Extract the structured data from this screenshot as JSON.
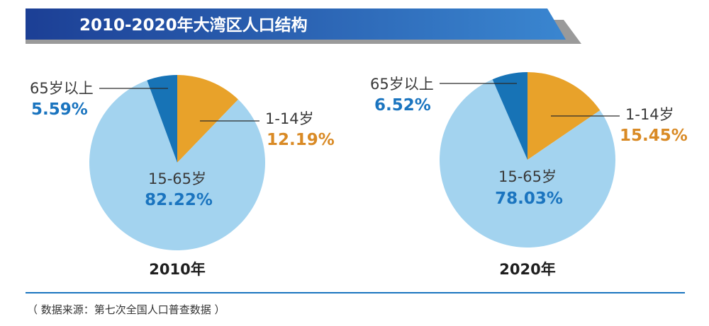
{
  "colors": {
    "banner_dark": "#1c3f95",
    "banner_light": "#3a86d0",
    "banner_shadow": "#9a9a9a",
    "aged_0_14": "#e8a22a",
    "aged_15_65": "#a3d3ef",
    "aged_65_plus": "#1773b6",
    "label_orange": "#d98a25",
    "label_blue": "#1a74bf",
    "divider": "#1a74bf"
  },
  "chart_data": {
    "type": "pie",
    "title": "2010-2020年大湾区人口结构",
    "charts": [
      {
        "year_label": "2010年",
        "slices": [
          {
            "name": "1-14岁",
            "value": 12.19,
            "value_label": "12.19%"
          },
          {
            "name": "15-65岁",
            "value": 82.22,
            "value_label": "82.22%"
          },
          {
            "name": "65岁以上",
            "value": 5.59,
            "value_label": "5.59%"
          }
        ]
      },
      {
        "year_label": "2020年",
        "slices": [
          {
            "name": "1-14岁",
            "value": 15.45,
            "value_label": "15.45%"
          },
          {
            "name": "15-65岁",
            "value": 78.03,
            "value_label": "78.03%"
          },
          {
            "name": "65岁以上",
            "value": 6.52,
            "value_label": "6.52%"
          }
        ]
      }
    ]
  },
  "source_note": "（ 数据来源：第七次全国人口普查数据 ）"
}
